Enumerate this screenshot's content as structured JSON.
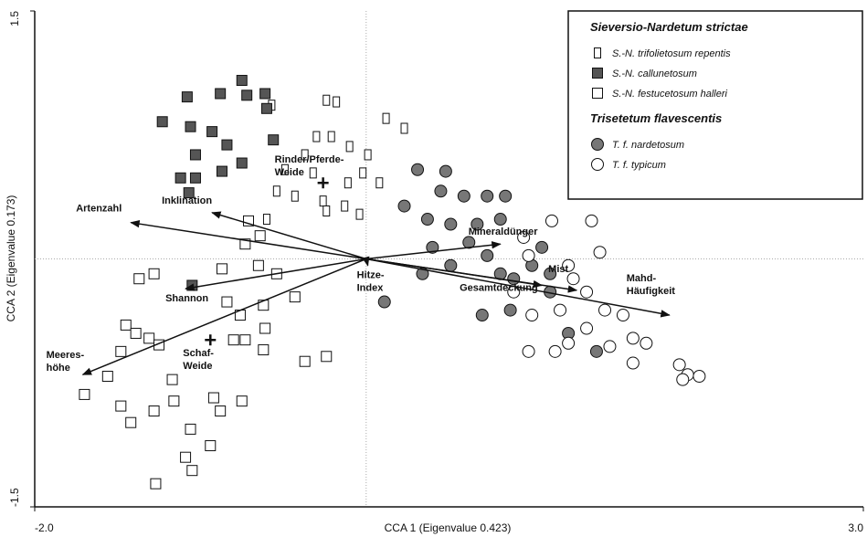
{
  "chart_data": {
    "type": "scatter",
    "xlabel": "CCA 1 (Eigenvalue 0.423)",
    "ylabel": "CCA 2 (Eigenvalue 0.173)",
    "xlim": [
      -2,
      3
    ],
    "ylim": [
      -1.5,
      1.5
    ],
    "xticks": [
      {
        "value": -2,
        "label": "-2.0"
      },
      {
        "value": 3,
        "label": "3.0"
      }
    ],
    "yticks": [
      1.5,
      -1.5
    ],
    "zero_lines": true,
    "groups": [
      {
        "title": "Sieversio-Nardetum strictae",
        "series": [
          {
            "name": "S.-N. trifolietosum repentis",
            "marker": "rect-tall",
            "color": "#ffffff",
            "x": [
              -0.24,
              -0.18,
              -0.57,
              -0.3,
              -0.21,
              -0.37,
              -0.1,
              0.01,
              -0.49,
              -0.32,
              -0.43,
              -0.26,
              -0.24,
              -0.11,
              -0.54,
              -0.6,
              0.12,
              0.23,
              -0.02,
              0.08,
              -0.13,
              -0.04
            ],
            "y": [
              0.96,
              0.95,
              0.93,
              0.74,
              0.74,
              0.63,
              0.68,
              0.63,
              0.54,
              0.52,
              0.38,
              0.35,
              0.29,
              0.46,
              0.41,
              0.24,
              0.85,
              0.79,
              0.52,
              0.46,
              0.32,
              0.27
            ]
          },
          {
            "name": "S.-N. callunetosum",
            "marker": "square",
            "color": "#555555",
            "x": [
              -1.23,
              -1.08,
              -0.88,
              -0.75,
              -0.72,
              -0.61,
              -0.56,
              -1.06,
              -0.93,
              -1.03,
              -0.84,
              -0.75,
              -1.12,
              -1.03,
              -0.87,
              -1.07,
              -0.6,
              -1.05
            ],
            "y": [
              0.83,
              0.98,
              1.0,
              1.08,
              0.99,
              1.0,
              0.72,
              0.8,
              0.77,
              0.63,
              0.69,
              0.58,
              0.49,
              0.49,
              0.53,
              0.4,
              0.91,
              -0.16
            ]
          },
          {
            "name": "S.-N. festucetosum halleri",
            "marker": "square",
            "color": "#ffffff",
            "x": [
              -1.37,
              -1.28,
              -1.45,
              -1.39,
              -1.31,
              -1.25,
              -1.48,
              -1.56,
              -1.7,
              -1.48,
              -1.42,
              -1.28,
              -1.17,
              -1.16,
              -1.06,
              -1.09,
              -1.05,
              -0.94,
              -0.92,
              -0.75,
              -0.8,
              -0.73,
              -0.62,
              -0.61,
              -0.37,
              -0.24,
              -0.87,
              -0.73,
              -0.65,
              -0.54,
              -0.43,
              -0.62,
              -0.76,
              -0.84,
              -0.71,
              -0.64,
              -1.27,
              -0.88
            ],
            "y": [
              -0.12,
              -0.09,
              -0.4,
              -0.45,
              -0.48,
              -0.52,
              -0.56,
              -0.71,
              -0.82,
              -0.89,
              -0.99,
              -0.92,
              -0.73,
              -0.86,
              -1.03,
              -1.2,
              -1.28,
              -1.13,
              -0.84,
              -0.86,
              -0.49,
              -0.49,
              -0.55,
              -0.42,
              -0.62,
              -0.59,
              -0.06,
              0.09,
              -0.04,
              -0.09,
              -0.23,
              -0.28,
              -0.34,
              -0.26,
              0.23,
              0.14,
              -1.36,
              -0.92
            ]
          }
        ]
      },
      {
        "title": "Trisetetum flavescentis",
        "series": [
          {
            "name": "T. f. nardetosum",
            "marker": "circle",
            "color": "#777777",
            "x": [
              0.31,
              0.48,
              0.45,
              0.59,
              0.73,
              0.84,
              0.81,
              0.23,
              0.37,
              0.51,
              0.67,
              0.62,
              0.4,
              0.51,
              0.73,
              0.81,
              0.89,
              1.0,
              1.11,
              1.11,
              0.7,
              0.87,
              0.11,
              1.22,
              1.39,
              1.06,
              0.34
            ],
            "y": [
              0.54,
              0.53,
              0.41,
              0.38,
              0.38,
              0.38,
              0.24,
              0.32,
              0.24,
              0.21,
              0.21,
              0.1,
              0.07,
              -0.04,
              0.02,
              -0.09,
              -0.12,
              -0.04,
              -0.09,
              -0.2,
              -0.34,
              -0.31,
              -0.26,
              -0.45,
              -0.56,
              0.07,
              -0.09
            ]
          },
          {
            "name": "T. f. typicum",
            "marker": "circle",
            "color": "#ffffff",
            "x": [
              1.12,
              1.36,
              1.41,
              0.95,
              0.98,
              1.22,
              1.25,
              1.33,
              1.44,
              1.55,
              1.61,
              1.69,
              1.47,
              1.33,
              1.17,
              1.0,
              0.98,
              1.22,
              1.61,
              1.89,
              1.94,
              2.01,
              1.91,
              1.14,
              0.89
            ],
            "y": [
              0.23,
              0.23,
              0.04,
              0.13,
              0.02,
              -0.04,
              -0.12,
              -0.2,
              -0.31,
              -0.34,
              -0.48,
              -0.51,
              -0.53,
              -0.42,
              -0.31,
              -0.34,
              -0.56,
              -0.51,
              -0.63,
              -0.64,
              -0.7,
              -0.71,
              -0.73,
              -0.56,
              -0.2
            ]
          }
        ]
      }
    ],
    "vectors": [
      {
        "label": [
          "Artenzahl"
        ],
        "x": -1.42,
        "y": 0.22
      },
      {
        "label": [
          "Inklination"
        ],
        "x": -0.93,
        "y": 0.28
      },
      {
        "label": [
          "Shannon"
        ],
        "x": -1.09,
        "y": -0.18
      },
      {
        "label": [
          "Meeres-",
          "höhe"
        ],
        "x": -1.71,
        "y": -0.7
      },
      {
        "label": [
          "Mahd-",
          "Häufigkeit"
        ],
        "x": 1.83,
        "y": -0.34
      },
      {
        "label": [
          "Mineraldünger"
        ],
        "x": 0.81,
        "y": 0.09
      },
      {
        "label": [
          "Mist"
        ],
        "x": 1.27,
        "y": -0.19
      },
      {
        "label": [
          "Gesamtdeckung"
        ],
        "x": 1.06,
        "y": -0.16
      },
      {
        "label": [
          "Hitze-",
          "Index"
        ],
        "x": 0.01,
        "y": -0.04
      }
    ],
    "centroids": [
      {
        "label": [
          "Rinder/Pferde-",
          "Weide"
        ],
        "x": -0.26,
        "y": 0.46
      },
      {
        "label": [
          "Schaf-",
          "Weide"
        ],
        "x": -0.94,
        "y": -0.49
      }
    ]
  }
}
